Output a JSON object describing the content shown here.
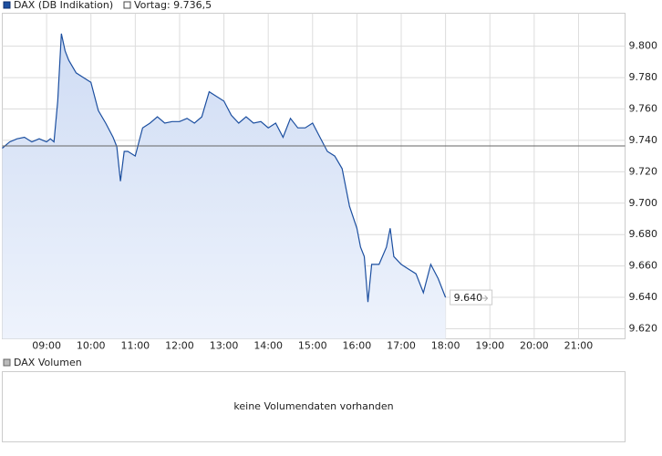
{
  "chart_data": {
    "type": "line",
    "series": [
      {
        "name": "DAX (DB Indikation)",
        "color": "#1c4fa0",
        "values": [
          9.735,
          9.739,
          9.741,
          9.742,
          9.739,
          9.741,
          9.739,
          9.741,
          9.739,
          9.765,
          9.808,
          9.797,
          9.791,
          9.783,
          9.78,
          9.777,
          9.759,
          9.751,
          9.742,
          9.736,
          9.714,
          9.733,
          9.733,
          9.73,
          9.748,
          9.751,
          9.755,
          9.751,
          9.752,
          9.752,
          9.754,
          9.751,
          9.755,
          9.771,
          9.768,
          9.765,
          9.756,
          9.751,
          9.755,
          9.751,
          9.752,
          9.748,
          9.751,
          9.742,
          9.754,
          9.748,
          9.748,
          9.751,
          9.742,
          9.733,
          9.73,
          9.722,
          9.698,
          9.684,
          9.672,
          9.666,
          9.637,
          9.661,
          9.661,
          9.672,
          9.684,
          9.666,
          9.661,
          9.658,
          9.655,
          9.643,
          9.661,
          9.652,
          9.64
        ]
      }
    ],
    "x": [
      480,
      490,
      500,
      510,
      520,
      530,
      540,
      545,
      550,
      555,
      560,
      565,
      570,
      580,
      590,
      600,
      610,
      620,
      630,
      635,
      640,
      645,
      650,
      660,
      670,
      680,
      690,
      700,
      710,
      720,
      730,
      740,
      750,
      760,
      770,
      780,
      790,
      800,
      810,
      820,
      830,
      840,
      850,
      860,
      870,
      880,
      890,
      900,
      910,
      920,
      930,
      940,
      950,
      960,
      965,
      970,
      975,
      980,
      990,
      1000,
      1005,
      1010,
      1020,
      1030,
      1040,
      1050,
      1060,
      1070,
      1080
    ],
    "xlim": [
      480,
      1323
    ],
    "xticks": [
      {
        "value": 540,
        "label": "09:00"
      },
      {
        "value": 600,
        "label": "10:00"
      },
      {
        "value": 660,
        "label": "11:00"
      },
      {
        "value": 720,
        "label": "12:00"
      },
      {
        "value": 780,
        "label": "13:00"
      },
      {
        "value": 840,
        "label": "14:00"
      },
      {
        "value": 900,
        "label": "15:00"
      },
      {
        "value": 960,
        "label": "16:00"
      },
      {
        "value": 1020,
        "label": "17:00"
      },
      {
        "value": 1080,
        "label": "18:00"
      },
      {
        "value": 1140,
        "label": "19:00"
      },
      {
        "value": 1200,
        "label": "20:00"
      },
      {
        "value": 1260,
        "label": "21:00"
      }
    ],
    "ylim": [
      9.6136,
      9.821
    ],
    "yticks": [
      {
        "value": 9.62,
        "label": "9.620"
      },
      {
        "value": 9.64,
        "label": "9.640"
      },
      {
        "value": 9.66,
        "label": "9.660"
      },
      {
        "value": 9.68,
        "label": "9.680"
      },
      {
        "value": 9.7,
        "label": "9.700"
      },
      {
        "value": 9.72,
        "label": "9.720"
      },
      {
        "value": 9.74,
        "label": "9.740"
      },
      {
        "value": 9.76,
        "label": "9.760"
      },
      {
        "value": 9.78,
        "label": "9.780"
      },
      {
        "value": 9.8,
        "label": "9.800"
      }
    ],
    "grid": true,
    "reference": {
      "value": 9.7365,
      "label": "Vortag: 9.736,5"
    },
    "last_price": {
      "value": 9.64,
      "label": "9.640"
    },
    "volume_panel": {
      "legend": "DAX Volumen",
      "message": "keine Volumendaten vorhanden"
    }
  }
}
